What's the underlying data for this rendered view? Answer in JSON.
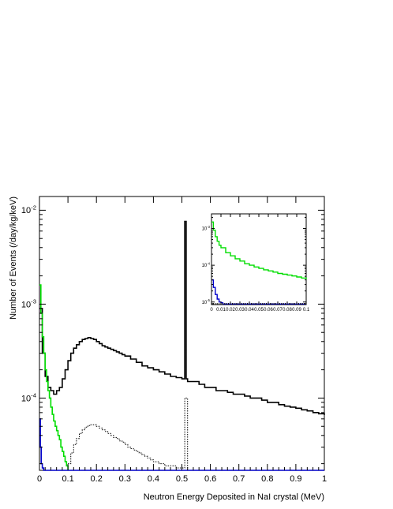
{
  "chart_data": [
    {
      "type": "line",
      "title": "",
      "xlabel": "Neutron Energy Deposited in NaI crystal (MeV)",
      "ylabel": "Number of Events (/day/kg/keV)",
      "xlim": [
        0,
        1
      ],
      "ylim": [
        1.7e-05,
        0.014
      ],
      "yscale": "log",
      "grid": false,
      "legend": "none",
      "x_ticks": [
        "0",
        "0.1",
        "0.2",
        "0.3",
        "0.4",
        "0.5",
        "0.6",
        "0.7",
        "0.8",
        "0.9",
        "1"
      ],
      "y_ticks": [
        {
          "base": "10",
          "exp": "-4",
          "value": 0.0001
        },
        {
          "base": "10",
          "exp": "-3",
          "value": 0.001
        },
        {
          "base": "10",
          "exp": "-2",
          "value": 0.01
        }
      ],
      "series": [
        {
          "color": "#000000",
          "style": "solid",
          "x": [
            0.0,
            0.01,
            0.02,
            0.03,
            0.04,
            0.05,
            0.06,
            0.07,
            0.08,
            0.09,
            0.1,
            0.11,
            0.12,
            0.13,
            0.14,
            0.15,
            0.16,
            0.17,
            0.18,
            0.19,
            0.2,
            0.21,
            0.22,
            0.23,
            0.24,
            0.25,
            0.26,
            0.27,
            0.28,
            0.29,
            0.3,
            0.32,
            0.34,
            0.36,
            0.38,
            0.4,
            0.42,
            0.44,
            0.46,
            0.48,
            0.5,
            0.505,
            0.51,
            0.515,
            0.52,
            0.54,
            0.56,
            0.58,
            0.6,
            0.62,
            0.64,
            0.66,
            0.68,
            0.7,
            0.72,
            0.74,
            0.76,
            0.78,
            0.8,
            0.82,
            0.84,
            0.86,
            0.88,
            0.9,
            0.92,
            0.94,
            0.96,
            0.98,
            1.0
          ],
          "y": [
            0.0009,
            0.0003,
            0.00017,
            0.00013,
            0.00012,
            0.00011,
            0.00012,
            0.00013,
            0.00016,
            0.0002,
            0.00025,
            0.0003,
            0.00034,
            0.00037,
            0.0004,
            0.00042,
            0.00043,
            0.00044,
            0.00043,
            0.00042,
            0.0004,
            0.00038,
            0.00036,
            0.00035,
            0.00034,
            0.00033,
            0.00032,
            0.00031,
            0.0003,
            0.00029,
            0.00028,
            0.00026,
            0.00024,
            0.00022,
            0.00021,
            0.0002,
            0.00019,
            0.00018,
            0.00017,
            0.000165,
            0.00016,
            0.00016,
            0.0076,
            0.00016,
            0.00015,
            0.00015,
            0.00014,
            0.00013,
            0.00013,
            0.00012,
            0.00012,
            0.000115,
            0.00011,
            0.00011,
            0.000105,
            0.0001,
            0.0001,
            9.5e-05,
            9e-05,
            9e-05,
            8.5e-05,
            8.2e-05,
            8e-05,
            7.8e-05,
            7.5e-05,
            7.3e-05,
            7e-05,
            6.8e-05,
            6.6e-05
          ]
        },
        {
          "color": "#00dd00",
          "style": "solid",
          "x": [
            0.0,
            0.005,
            0.01,
            0.015,
            0.02,
            0.025,
            0.03,
            0.035,
            0.04,
            0.045,
            0.05,
            0.055,
            0.06,
            0.065,
            0.07,
            0.075,
            0.08,
            0.085,
            0.09,
            0.095,
            0.1
          ],
          "y": [
            0.0016,
            0.0008,
            0.00045,
            0.0003,
            0.0002,
            0.00015,
            0.00012,
            0.0001,
            8e-05,
            6.7e-05,
            5.7e-05,
            5e-05,
            4.5e-05,
            4e-05,
            3.6e-05,
            3e-05,
            2.7e-05,
            2.4e-05,
            2.1e-05,
            1.9e-05,
            1.7e-05
          ]
        },
        {
          "color": "#000000",
          "style": "dotted",
          "x": [
            0.1,
            0.11,
            0.12,
            0.13,
            0.14,
            0.15,
            0.16,
            0.17,
            0.18,
            0.19,
            0.2,
            0.21,
            0.22,
            0.23,
            0.24,
            0.25,
            0.26,
            0.27,
            0.28,
            0.29,
            0.3,
            0.31,
            0.32,
            0.33,
            0.34,
            0.35,
            0.36,
            0.37,
            0.38,
            0.39,
            0.4,
            0.42,
            0.44,
            0.46,
            0.48,
            0.5,
            0.51,
            0.52
          ],
          "y": [
            2e-05,
            2.6e-05,
            3.2e-05,
            3.7e-05,
            4.2e-05,
            4.6e-05,
            4.9e-05,
            5.1e-05,
            5.2e-05,
            5.2e-05,
            5e-05,
            4.8e-05,
            4.6e-05,
            4.4e-05,
            4.2e-05,
            4e-05,
            3.8e-05,
            3.7e-05,
            3.5e-05,
            3.4e-05,
            3.2e-05,
            3e-05,
            2.9e-05,
            2.8e-05,
            2.7e-05,
            2.6e-05,
            2.5e-05,
            2.4e-05,
            2.3e-05,
            2.2e-05,
            2.1e-05,
            2e-05,
            1.9e-05,
            1.9e-05,
            1.8e-05,
            1.8e-05,
            0.0001,
            1.8e-05
          ]
        },
        {
          "color": "#0000cc",
          "style": "solid",
          "x": [
            0.0,
            0.003,
            0.006,
            0.01,
            0.015,
            1.0
          ],
          "y": [
            6e-05,
            3e-05,
            2e-05,
            1.8e-05,
            1.7e-05,
            1.7e-05
          ]
        }
      ]
    },
    {
      "type": "line",
      "title": "",
      "xlabel": "",
      "ylabel": "",
      "xlim": [
        0,
        0.1
      ],
      "ylim": [
        8.5e-06,
        0.0025
      ],
      "yscale": "log",
      "grid": false,
      "legend": "none",
      "x_ticks": [
        "0",
        "0.01",
        "0.02",
        "0.03",
        "0.04",
        "0.05",
        "0.06",
        "0.07",
        "0.08",
        "0.09",
        "0.1"
      ],
      "y_ticks": [
        {
          "base": "10",
          "exp": "-5",
          "value": 1e-05
        },
        {
          "base": "10",
          "exp": "-4",
          "value": 0.0001
        },
        {
          "base": "10",
          "exp": "-3",
          "value": 0.001
        }
      ],
      "series": [
        {
          "color": "#00dd00",
          "style": "solid",
          "x": [
            0.0,
            0.002,
            0.004,
            0.006,
            0.008,
            0.01,
            0.015,
            0.02,
            0.025,
            0.03,
            0.035,
            0.04,
            0.045,
            0.05,
            0.055,
            0.06,
            0.065,
            0.07,
            0.075,
            0.08,
            0.085,
            0.09,
            0.095,
            0.1
          ],
          "y": [
            0.0015,
            0.0009,
            0.0006,
            0.00045,
            0.00035,
            0.0003,
            0.00022,
            0.00018,
            0.00015,
            0.00013,
            0.00011,
            0.0001,
            9e-05,
            8.2e-05,
            7.5e-05,
            7e-05,
            6.5e-05,
            6e-05,
            5.7e-05,
            5.4e-05,
            5.1e-05,
            4.8e-05,
            4.5e-05,
            4.2e-05
          ]
        },
        {
          "color": "#0000cc",
          "style": "solid",
          "x": [
            0.0,
            0.002,
            0.004,
            0.006,
            0.008,
            0.01,
            0.012,
            0.1
          ],
          "y": [
            4e-05,
            2.5e-05,
            1.6e-05,
            1.2e-05,
            1e-05,
            9.5e-06,
            8.8e-06,
            8.8e-06
          ]
        }
      ]
    }
  ]
}
